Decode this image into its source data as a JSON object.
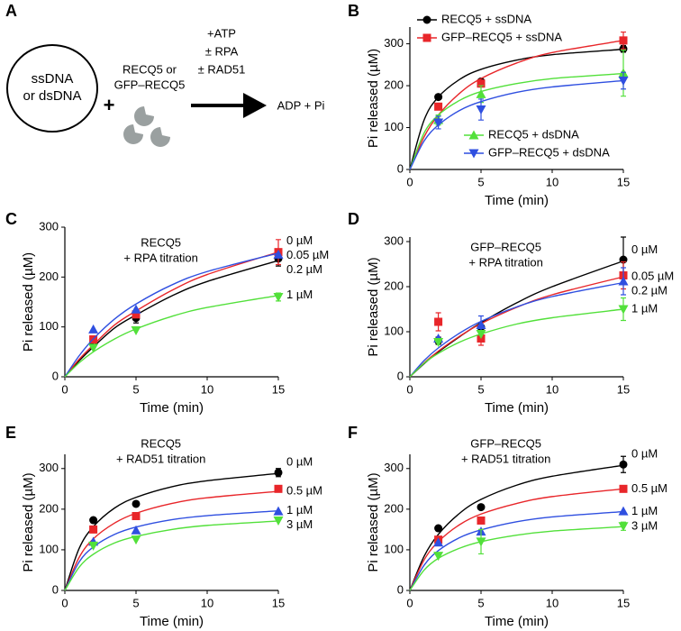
{
  "panel_a": {
    "label": "A",
    "substrate": [
      "ssDNA",
      "or dsDNA"
    ],
    "plus": "+",
    "enzyme": [
      "RECQ5 or",
      "GFP–RECQ5"
    ],
    "conditions": [
      "+ATP",
      "± RPA",
      "± RAD51"
    ],
    "product": "ADP + Pi"
  },
  "chart_data": [
    {
      "type": "line",
      "panel": "B",
      "xlabel": "Time (min)",
      "ylabel": "Pi released (µM)",
      "legend_style": "box",
      "x": [
        2,
        5,
        15
      ],
      "fit_x": [
        0,
        1,
        2,
        3.5,
        5,
        7.5,
        10,
        15
      ],
      "xlim": [
        0,
        15
      ],
      "xticks": [
        0,
        5,
        10,
        15
      ],
      "ylim": [
        0,
        340
      ],
      "yticks": [
        0,
        100,
        200,
        300
      ],
      "series": [
        {
          "name": "RECQ5 + ssDNA",
          "color": "#000000",
          "marker": "circle",
          "legend": "upper left",
          "values": [
            173,
            210,
            288
          ],
          "errors": [
            null,
            null,
            8
          ],
          "fit": [
            0,
            118,
            173,
            215,
            239,
            261,
            274,
            287
          ]
        },
        {
          "name": "GFP–RECQ5 + ssDNA",
          "color": "#e8262a",
          "marker": "square",
          "legend": "upper left",
          "values": [
            150,
            205,
            308
          ],
          "errors": [
            null,
            8,
            20
          ],
          "fit": [
            0,
            78,
            130,
            182,
            217,
            254,
            279,
            308
          ]
        },
        {
          "name": "RECQ5 + dsDNA",
          "color": "#52e03a",
          "marker": "triangle-up",
          "legend": "lower right",
          "values": [
            118,
            180,
            230
          ],
          "errors": [
            12,
            20,
            55
          ],
          "fit": [
            0,
            87,
            130,
            165,
            186,
            205,
            217,
            229
          ]
        },
        {
          "name": "GFP–RECQ5 + dsDNA",
          "color": "#2f4fe0",
          "marker": "triangle-down",
          "legend": "lower right",
          "values": [
            112,
            143,
            212
          ],
          "errors": [
            15,
            25,
            20
          ],
          "fit": [
            0,
            68,
            106,
            141,
            162,
            184,
            197,
            212
          ]
        }
      ]
    },
    {
      "type": "line",
      "panel": "C",
      "xlabel": "Time (min)",
      "ylabel": "Pi released (µM)",
      "legend_style": "end",
      "annotation": [
        "RECQ5",
        "+ RPA titration"
      ],
      "x": [
        2,
        5,
        15
      ],
      "fit_x": [
        0,
        1,
        2,
        3.5,
        5,
        7.5,
        10,
        15
      ],
      "xlim": [
        0,
        15
      ],
      "xticks": [
        0,
        5,
        10,
        15
      ],
      "ylim": [
        0,
        300
      ],
      "yticks": [
        0,
        100,
        200,
        300
      ],
      "series": [
        {
          "name": "0 µM",
          "color": "#000000",
          "marker": "circle",
          "values": [
            68,
            118,
            237
          ],
          "errors": [
            6,
            10,
            15
          ],
          "fit": [
            0,
            32,
            60,
            98,
            124,
            162,
            191,
            233
          ]
        },
        {
          "name": "0.05 µM",
          "color": "#e8262a",
          "marker": "square",
          "values": [
            75,
            125,
            250
          ],
          "errors": [
            null,
            null,
            25
          ],
          "fit": [
            0,
            35,
            64,
            104,
            132,
            173,
            205,
            250
          ]
        },
        {
          "name": "0.2 µM",
          "color": "#2f4fe0",
          "marker": "triangle-up",
          "values": [
            95,
            135,
            245
          ],
          "errors": [
            null,
            null,
            null
          ],
          "fit": [
            0,
            42,
            76,
            116,
            146,
            184,
            211,
            248
          ]
        },
        {
          "name": "1 µM",
          "color": "#52e03a",
          "marker": "triangle-down",
          "values": [
            58,
            93,
            160
          ],
          "errors": [
            null,
            null,
            8
          ],
          "fit": [
            0,
            28,
            50,
            76,
            96,
            121,
            139,
            163
          ]
        }
      ]
    },
    {
      "type": "line",
      "panel": "D",
      "xlabel": "Time (min)",
      "ylabel": "Pi released (µM)",
      "legend_style": "end",
      "annotation": [
        "GFP–RECQ5",
        "+ RPA titration"
      ],
      "x": [
        2,
        5,
        15
      ],
      "fit_x": [
        0,
        1,
        2,
        3.5,
        5,
        7.5,
        10,
        15
      ],
      "xlim": [
        0,
        15
      ],
      "xticks": [
        0,
        5,
        10,
        15
      ],
      "ylim": [
        0,
        310
      ],
      "yticks": [
        0,
        100,
        200,
        300
      ],
      "series": [
        {
          "name": "0 µM",
          "color": "#000000",
          "marker": "circle",
          "values": [
            80,
            110,
            260
          ],
          "errors": [
            8,
            10,
            50
          ],
          "fit": [
            0,
            29,
            55,
            89,
            120,
            164,
            200,
            257
          ]
        },
        {
          "name": "0.05 µM",
          "color": "#e8262a",
          "marker": "square",
          "values": [
            122,
            85,
            225
          ],
          "errors": [
            20,
            15,
            30
          ],
          "fit": [
            0,
            31,
            57,
            90,
            118,
            154,
            182,
            222
          ]
        },
        {
          "name": "0.2 µM",
          "color": "#2f4fe0",
          "marker": "triangle-up",
          "values": [
            85,
            115,
            212
          ],
          "errors": [
            null,
            20,
            30
          ],
          "fit": [
            0,
            36,
            64,
            97,
            123,
            155,
            178,
            209
          ]
        },
        {
          "name": "1 µM",
          "color": "#52e03a",
          "marker": "triangle-down",
          "values": [
            77,
            95,
            150
          ],
          "errors": [
            null,
            null,
            25
          ],
          "fit": [
            0,
            30,
            52,
            77,
            95,
            117,
            131,
            150
          ]
        }
      ]
    },
    {
      "type": "line",
      "panel": "E",
      "xlabel": "Time (min)",
      "ylabel": "Pi released (µM)",
      "legend_style": "end",
      "annotation": [
        "RECQ5",
        "+ RAD51 titration"
      ],
      "x": [
        2,
        5,
        15
      ],
      "fit_x": [
        0,
        1,
        2,
        3.5,
        5,
        7.5,
        10,
        15
      ],
      "xlim": [
        0,
        15
      ],
      "xticks": [
        0,
        5,
        10,
        15
      ],
      "ylim": [
        0,
        335
      ],
      "yticks": [
        0,
        100,
        200,
        300
      ],
      "series": [
        {
          "name": "0 µM",
          "color": "#000000",
          "marker": "circle",
          "values": [
            173,
            213,
            290
          ],
          "errors": [
            null,
            null,
            10
          ],
          "fit": [
            0,
            103,
            157,
            203,
            229,
            255,
            270,
            288
          ]
        },
        {
          "name": "0.5 µM",
          "color": "#e8262a",
          "marker": "square",
          "values": [
            150,
            183,
            250
          ],
          "errors": [
            null,
            null,
            null
          ],
          "fit": [
            0,
            81,
            127,
            166,
            190,
            214,
            228,
            244
          ]
        },
        {
          "name": "1 µM",
          "color": "#2f4fe0",
          "marker": "triangle-up",
          "values": [
            120,
            148,
            195
          ],
          "errors": [
            null,
            null,
            null
          ],
          "fit": [
            0,
            70,
            107,
            138,
            156,
            174,
            184,
            196
          ]
        },
        {
          "name": "3 µM",
          "color": "#52e03a",
          "marker": "triangle-down",
          "values": [
            110,
            125,
            172
          ],
          "errors": [
            null,
            null,
            null
          ],
          "fit": [
            0,
            57,
            89,
            117,
            133,
            150,
            160,
            171
          ]
        }
      ]
    },
    {
      "type": "line",
      "panel": "F",
      "xlabel": "Time (min)",
      "ylabel": "Pi released (µM)",
      "legend_style": "end",
      "annotation": [
        "GFP–RECQ5",
        "+ RAD51 titration"
      ],
      "x": [
        2,
        5,
        15
      ],
      "fit_x": [
        0,
        1,
        2,
        3.5,
        5,
        7.5,
        10,
        15
      ],
      "xlim": [
        0,
        15
      ],
      "xticks": [
        0,
        5,
        10,
        15
      ],
      "ylim": [
        0,
        335
      ],
      "yticks": [
        0,
        100,
        200,
        300
      ],
      "series": [
        {
          "name": "0 µM",
          "color": "#000000",
          "marker": "circle",
          "values": [
            153,
            205,
            310
          ],
          "errors": [
            null,
            null,
            20
          ],
          "fit": [
            0,
            84,
            138,
            190,
            224,
            259,
            281,
            308
          ]
        },
        {
          "name": "0.5 µM",
          "color": "#e8262a",
          "marker": "square",
          "values": [
            125,
            172,
            250
          ],
          "errors": [
            null,
            null,
            null
          ],
          "fit": [
            0,
            75,
            120,
            162,
            188,
            214,
            231,
            250
          ]
        },
        {
          "name": "1 µM",
          "color": "#2f4fe0",
          "marker": "triangle-up",
          "values": [
            118,
            145,
            195
          ],
          "errors": [
            null,
            null,
            null
          ],
          "fit": [
            0,
            62,
            98,
            130,
            149,
            169,
            181,
            194
          ]
        },
        {
          "name": "3 µM",
          "color": "#52e03a",
          "marker": "triangle-down",
          "values": [
            85,
            120,
            158
          ],
          "errors": [
            null,
            30,
            10
          ],
          "fit": [
            0,
            50,
            79,
            104,
            120,
            136,
            146,
            157
          ]
        }
      ]
    }
  ]
}
